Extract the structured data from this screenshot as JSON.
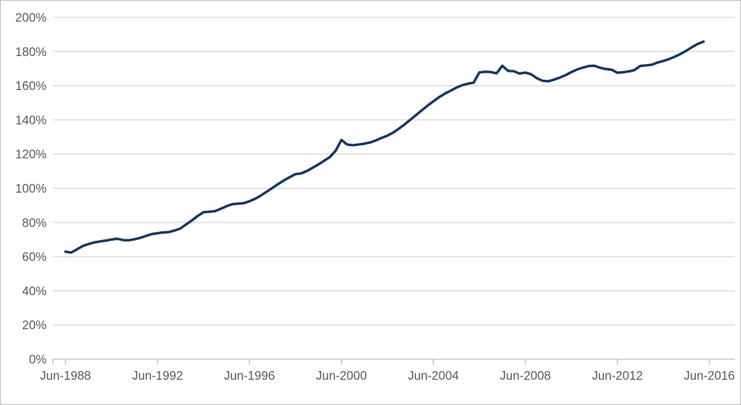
{
  "chart_data": {
    "type": "line",
    "title": "",
    "xlabel": "",
    "ylabel": "",
    "grid": "horizontal",
    "legend": "none",
    "x_tick_labels": [
      "Jun-1988",
      "Jun-1992",
      "Jun-1996",
      "Jun-2000",
      "Jun-2004",
      "Jun-2008",
      "Jun-2012",
      "Jun-2016"
    ],
    "y_tick_labels": [
      "0%",
      "20%",
      "40%",
      "60%",
      "80%",
      "100%",
      "120%",
      "140%",
      "160%",
      "180%",
      "200%"
    ],
    "ylim": [
      0,
      200
    ],
    "y_unit": "percent",
    "x_start": "Jun-1988",
    "x_end": "Mar-2016",
    "x_frequency": "quarterly",
    "x_start_year_decimal": 1988.5,
    "x_step_years": 0.25,
    "values": [
      62.9,
      62.4,
      64.3,
      66.2,
      67.4,
      68.3,
      68.9,
      69.4,
      70.0,
      70.5,
      69.7,
      69.6,
      70.2,
      71.0,
      72.1,
      73.2,
      73.7,
      74.2,
      74.4,
      75.3,
      76.5,
      78.9,
      81.2,
      83.8,
      86.0,
      86.3,
      86.6,
      88.0,
      89.5,
      90.7,
      91.0,
      91.3,
      92.4,
      93.9,
      95.8,
      98.0,
      100.2,
      102.5,
      104.6,
      106.5,
      108.3,
      108.7,
      110.1,
      112.0,
      114.0,
      116.1,
      118.3,
      122.0,
      128.3,
      125.6,
      125.2,
      125.6,
      126.1,
      126.8,
      128.0,
      129.5,
      130.8,
      132.6,
      134.9,
      137.4,
      140.1,
      142.9,
      145.7,
      148.4,
      150.9,
      153.3,
      155.4,
      157.1,
      158.9,
      160.3,
      161.2,
      161.8,
      167.8,
      168.2,
      168.0,
      167.3,
      171.7,
      168.7,
      168.5,
      167.1,
      167.7,
      166.7,
      164.4,
      162.9,
      162.6,
      163.6,
      164.8,
      166.2,
      168.0,
      169.5,
      170.6,
      171.5,
      171.7,
      170.5,
      169.8,
      169.4,
      167.6,
      167.9,
      168.4,
      169.2,
      171.6,
      171.9,
      172.3,
      173.6,
      174.5,
      175.6,
      177.0,
      178.6,
      180.5,
      182.6,
      184.5,
      185.8
    ]
  },
  "style": {
    "line_color": "#17375e",
    "gridline_color": "#d9d9d9",
    "axis_color": "#bfbfbf",
    "label_color": "#595959",
    "background": "#ffffff",
    "border_color": "#bfbfbf"
  }
}
